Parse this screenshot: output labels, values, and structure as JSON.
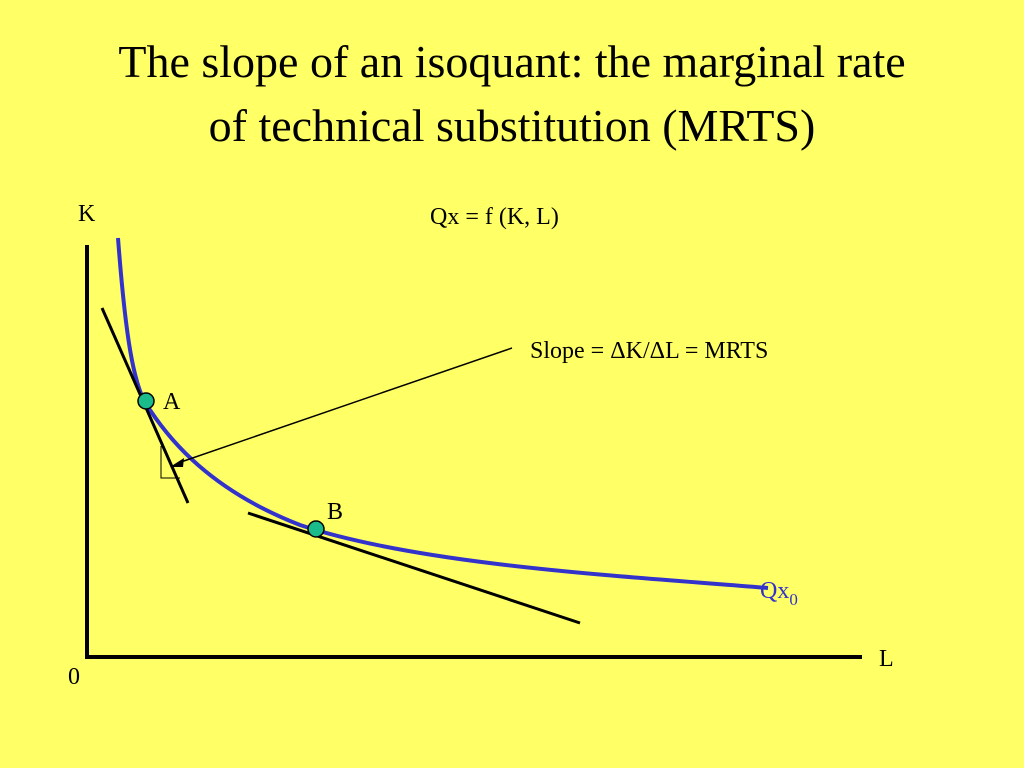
{
  "slide": {
    "title_line1": "The slope of an isoquant: the marginal rate",
    "title_line2": "of technical substitution (MRTS)"
  },
  "diagram": {
    "axis_y_label": "K",
    "axis_x_label": "L",
    "origin_label": "0",
    "function_label": "Qx = f (K, L)",
    "slope_annotation": "Slope = ΔK/ΔL = MRTS",
    "point_a_label": "A",
    "point_b_label": "B",
    "isoquant_label": "Qx",
    "isoquant_subscript": "0"
  },
  "colors": {
    "background": "#ffff66",
    "curve": "#3333cc",
    "point_fill": "#1abc8c",
    "line": "#000000"
  }
}
